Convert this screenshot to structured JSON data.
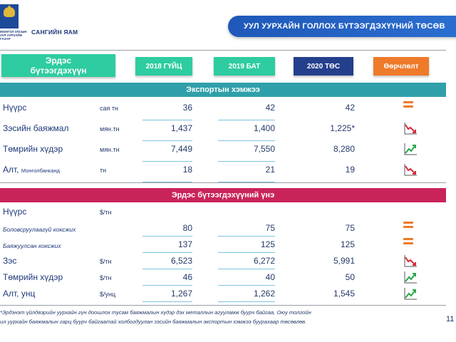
{
  "header": {
    "logo_text": "МОНГОЛ УЛСЫН УУЛ УУРХАЙН ГАЗАР",
    "ministry": "САНГИЙН ЯАМ",
    "title": "УУЛ УУРХАЙН ГОЛЛОХ БҮТЭЭГДЭХҮҮНИЙ ТӨСӨВ"
  },
  "columns": {
    "mineral_line1": "Эрдэс",
    "mineral_line2": "бүтээгдэхүүн",
    "c2018": "2018 ГҮЙЦ",
    "c2019": "2019 БАТ",
    "c2020": "2020 ТӨС",
    "change": "Өөрчлөлт"
  },
  "sections": {
    "export": "Экспортын хэмжээ",
    "price": "Эрдэс бүтээгдэхүүний үнэ"
  },
  "export_rows": [
    {
      "name": "Нүүрс",
      "sub": "",
      "unit": "сая тн",
      "v2018": "36",
      "v2019": "42",
      "v2020": "42",
      "trend": "equal-icon"
    },
    {
      "name": "Зэсийн баяжмал",
      "sub": "",
      "unit": "мян.тн",
      "v2018": "1,437",
      "v2019": "1,400",
      "v2020": "1,225*",
      "trend": "trend-down-icon"
    },
    {
      "name": "Төмрийн хүдэр",
      "sub": "",
      "unit": "мян.тн",
      "v2018": "7,449",
      "v2019": "7,550",
      "v2020": "8,280",
      "trend": "trend-up-icon"
    },
    {
      "name": "Алт,",
      "sub": "Монголбанканд",
      "unit": "тн",
      "v2018": "18",
      "v2019": "21",
      "v2020": "19",
      "trend": "trend-down-icon"
    }
  ],
  "price_rows": [
    {
      "name": "Нүүрс",
      "unit": "$/тн",
      "v2018": "",
      "v2019": "",
      "v2020": "",
      "trend": ""
    },
    {
      "name": "Боловсруулаагүй коксжих",
      "unit": "",
      "v2018": "80",
      "v2019": "75",
      "v2020": "75",
      "trend": "equal-icon"
    },
    {
      "name": "Баяжуулсан коксжих",
      "unit": "",
      "v2018": "137",
      "v2019": "125",
      "v2020": "125",
      "trend": "equal-icon"
    },
    {
      "name": "Зэс",
      "unit": "$/тн",
      "v2018": "6,523",
      "v2019": "6,272",
      "v2020": "5,991",
      "trend": "trend-down-icon"
    },
    {
      "name": "Төмрийн хүдэр",
      "unit": "$/тн",
      "v2018": "46",
      "v2019": "40",
      "v2020": "50",
      "trend": "trend-up-icon"
    },
    {
      "name": "Алт, унц",
      "unit": "$/унц",
      "v2018": "1,267",
      "v2019": "1,262",
      "v2020": "1,545",
      "trend": "trend-up-icon"
    }
  ],
  "footnote": {
    "line1": "*Эрдэнэт үйлдвэрийн уурхайн гүн доошлох тусам баяжмалын хүдэр дэх металлын агууламж буурч байгаа, Оюу толгойн",
    "line2": "ил уурхайн баяжмалын гарц буурч байгаатай холбогдуулан зэсийн баяжмалын экспортын хэмжээ буурахаар төсөвлөв."
  },
  "page_number": "11",
  "colors": {
    "teal": "#2ecca0",
    "navy": "#243f8c",
    "orange": "#ee7a2a",
    "band_export": "#2fa0aa",
    "band_price": "#c9245a",
    "trend_up": "#2aa84a",
    "trend_down": "#d8283a"
  }
}
